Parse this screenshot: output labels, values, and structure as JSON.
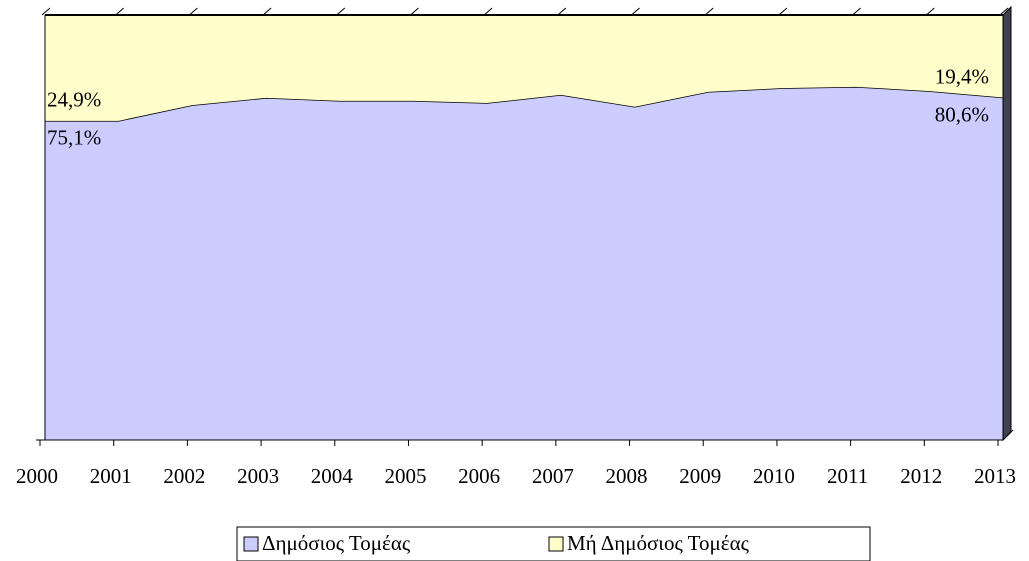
{
  "chart_data": {
    "type": "stacked-area",
    "categories": [
      "2000",
      "2001",
      "2002",
      "2003",
      "2004",
      "2005",
      "2006",
      "2007",
      "2008",
      "2009",
      "2010",
      "2011",
      "2012",
      "2013"
    ],
    "series": [
      {
        "name": "Δημόσιος Τομέας",
        "color": "#ccccff",
        "values": [
          75.1,
          75.1,
          78.8,
          80.5,
          79.8,
          79.8,
          79.3,
          81.2,
          78.4,
          81.9,
          82.8,
          83.1,
          82.1,
          80.6
        ],
        "value_labels": [
          "75,1%",
          null,
          null,
          null,
          null,
          null,
          null,
          null,
          null,
          null,
          null,
          null,
          null,
          "80,6%"
        ]
      },
      {
        "name": "Μή Δημόσιος Τομέας",
        "color": "#ffffcc",
        "values": [
          24.9,
          24.9,
          21.2,
          19.5,
          20.2,
          20.2,
          20.7,
          18.8,
          21.6,
          18.1,
          17.2,
          16.9,
          17.9,
          19.4
        ],
        "value_labels": [
          "24,9%",
          null,
          null,
          null,
          null,
          null,
          null,
          null,
          null,
          null,
          null,
          null,
          null,
          "19,4%"
        ]
      }
    ],
    "ylim": [
      0,
      100
    ]
  }
}
